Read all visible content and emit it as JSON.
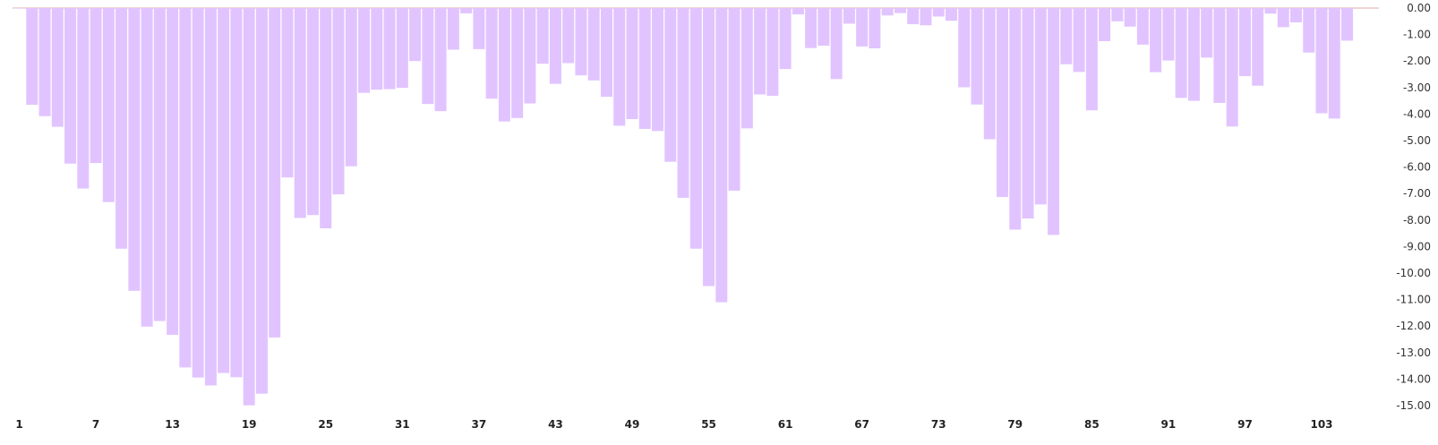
{
  "chart_data": {
    "type": "bar",
    "bar_color": "#e1c4ff",
    "x_tick_step": 6,
    "ylim": [
      -15,
      0
    ],
    "y_ticks": [
      0,
      -1,
      -2,
      -3,
      -4,
      -5,
      -6,
      -7,
      -8,
      -9,
      -10,
      -11,
      -12,
      -13,
      -14,
      -15
    ],
    "y_tick_labels": [
      "0.00",
      "-1.00",
      "-2.00",
      "-3.00",
      "-4.00",
      "-5.00",
      "-6.00",
      "-7.00",
      "-8.00",
      "-9.00",
      "-10.00",
      "-11.00",
      "-12.00",
      "-13.00",
      "-14.00",
      "-15.00"
    ],
    "x_tick_labels": [
      "1",
      "7",
      "13",
      "19",
      "25",
      "31",
      "37",
      "43",
      "49",
      "55",
      "61",
      "67",
      "73",
      "79",
      "85",
      "91",
      "97",
      "103"
    ],
    "categories": [
      1,
      2,
      3,
      4,
      5,
      6,
      7,
      8,
      9,
      10,
      11,
      12,
      13,
      14,
      15,
      16,
      17,
      18,
      19,
      20,
      21,
      22,
      23,
      24,
      25,
      26,
      27,
      28,
      29,
      30,
      31,
      32,
      33,
      34,
      35,
      36,
      37,
      38,
      39,
      40,
      41,
      42,
      43,
      44,
      45,
      46,
      47,
      48,
      49,
      50,
      51,
      52,
      53,
      54,
      55,
      56,
      57,
      58,
      59,
      60,
      61,
      62,
      63,
      64,
      65,
      66,
      67,
      68,
      69,
      70,
      71,
      72,
      73,
      74,
      75,
      76,
      77,
      78,
      79,
      80,
      81,
      82,
      83,
      84,
      85,
      86,
      87,
      88,
      89,
      90,
      91,
      92,
      93,
      94,
      95,
      96,
      97,
      98,
      99,
      100,
      101,
      102,
      103,
      104,
      105
    ],
    "values": [
      -0.02,
      -3.65,
      -4.08,
      -4.48,
      -5.87,
      -6.81,
      -5.85,
      -7.32,
      -9.08,
      -10.67,
      -12.02,
      -11.81,
      -12.33,
      -13.56,
      -13.94,
      -14.24,
      -13.77,
      -13.93,
      -14.99,
      -14.55,
      -12.43,
      -6.39,
      -7.92,
      -7.81,
      -8.31,
      -7.03,
      -5.97,
      -3.2,
      -3.08,
      -3.06,
      -3.01,
      -2.0,
      -3.62,
      -3.89,
      -1.57,
      -0.2,
      -1.55,
      -3.42,
      -4.28,
      -4.15,
      -3.6,
      -2.1,
      -2.86,
      -2.08,
      -2.54,
      -2.73,
      -3.35,
      -4.44,
      -4.19,
      -4.56,
      -4.64,
      -5.8,
      -7.16,
      -9.08,
      -10.49,
      -11.1,
      -6.89,
      -4.54,
      -3.26,
      -3.31,
      -2.3,
      -0.24,
      -1.51,
      -1.42,
      -2.68,
      -0.59,
      -1.45,
      -1.52,
      -0.28,
      -0.19,
      -0.61,
      -0.65,
      -0.32,
      -0.48,
      -2.99,
      -3.64,
      -4.95,
      -7.13,
      -8.36,
      -7.94,
      -7.41,
      -8.56,
      -2.12,
      -2.41,
      -3.86,
      -1.25,
      -0.5,
      -0.7,
      -1.38,
      -2.42,
      -1.98,
      -3.39,
      -3.5,
      -1.87,
      -3.58,
      -4.47,
      -2.57,
      -2.93,
      -0.21,
      -0.72,
      -0.54,
      -1.68,
      -3.97,
      -4.17,
      -1.23
    ]
  }
}
